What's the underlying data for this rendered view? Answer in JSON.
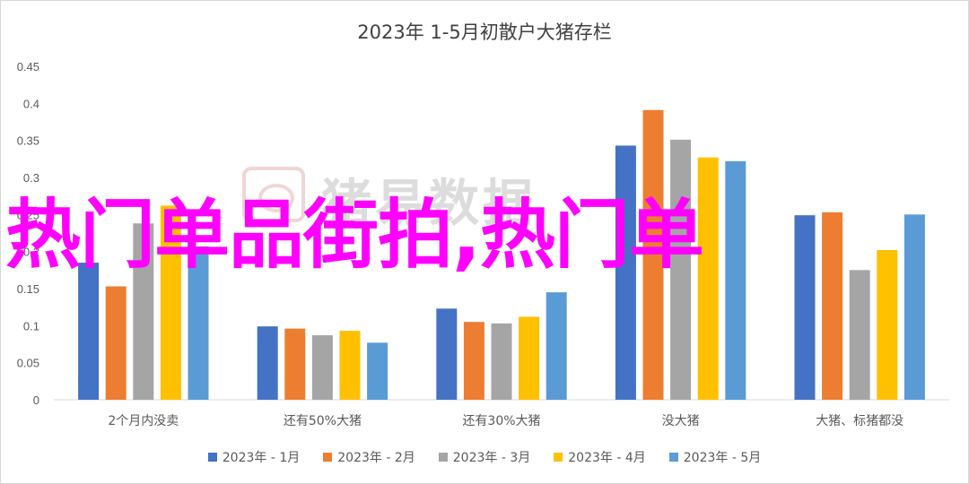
{
  "chart_data": {
    "type": "bar",
    "title": "2023年 1-5月初散户大猪存栏",
    "xlabel": "",
    "ylabel": "",
    "ylim": [
      0,
      0.45
    ],
    "yticks": [
      "0",
      "0.05",
      "0.1",
      "0.15",
      "0.2",
      "0.25",
      "0.3",
      "0.35",
      "0.4",
      "0.45"
    ],
    "grid": false,
    "legend_position": "bottom",
    "categories": [
      "2个月内没卖",
      "还有50%大猪",
      "还有30%大猪",
      "没大猪",
      "大猪、标猪都没"
    ],
    "series": [
      {
        "name": "2023年 - 1月",
        "color": "#4472c4",
        "values": [
          0.185,
          0.099,
          0.123,
          0.343,
          0.249
        ]
      },
      {
        "name": "2023年 - 2月",
        "color": "#ed7d31",
        "values": [
          0.153,
          0.096,
          0.105,
          0.391,
          0.253
        ]
      },
      {
        "name": "2023年 - 3月",
        "color": "#a5a5a5",
        "values": [
          0.238,
          0.087,
          0.103,
          0.351,
          0.175
        ]
      },
      {
        "name": "2023年 - 4月",
        "color": "#ffc000",
        "values": [
          0.262,
          0.093,
          0.112,
          0.327,
          0.202
        ]
      },
      {
        "name": "2023年 - 5月",
        "color": "#5b9bd5",
        "values": [
          0.207,
          0.077,
          0.145,
          0.322,
          0.25
        ]
      }
    ]
  },
  "watermark": {
    "text": "猪易数据"
  },
  "overlay": {
    "text": "热门单品街拍,热门单"
  }
}
